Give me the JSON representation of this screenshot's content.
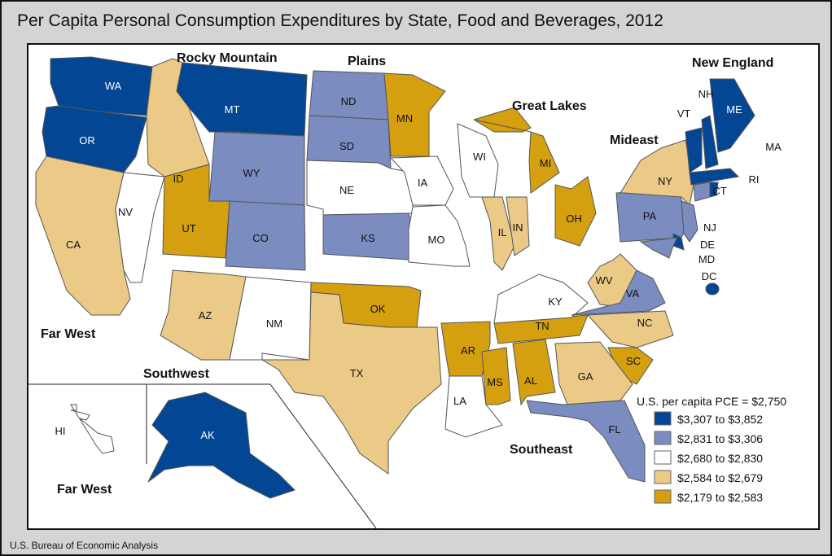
{
  "title": "Per Capita Personal Consumption Expenditures by State, Food and Beverages, 2012",
  "source": "U.S. Bureau of Economic Analysis",
  "legend": {
    "title": "U.S. per capita PCE = $2,750",
    "classes": [
      {
        "label": "$3,307 to $3,852",
        "color": "#034694"
      },
      {
        "label": "$2,831 to $3,306",
        "color": "#7a8cc0"
      },
      {
        "label": "$2,680 to $2,830",
        "color": "#ffffff"
      },
      {
        "label": "$2,584 to $2,679",
        "color": "#ebc987"
      },
      {
        "label": "$2,179 to $2,583",
        "color": "#d4a010"
      }
    ]
  },
  "regions": [
    "Rocky Mountain",
    "Plains",
    "Great Lakes",
    "New England",
    "Mideast",
    "Far West",
    "Southwest",
    "Southeast",
    "Far West"
  ],
  "states": [
    {
      "abbr": "WA",
      "cls": 0
    },
    {
      "abbr": "OR",
      "cls": 0
    },
    {
      "abbr": "CA",
      "cls": 3
    },
    {
      "abbr": "NV",
      "cls": 2
    },
    {
      "abbr": "ID",
      "cls": 3
    },
    {
      "abbr": "MT",
      "cls": 0
    },
    {
      "abbr": "WY",
      "cls": 1
    },
    {
      "abbr": "UT",
      "cls": 4
    },
    {
      "abbr": "CO",
      "cls": 1
    },
    {
      "abbr": "AZ",
      "cls": 3
    },
    {
      "abbr": "NM",
      "cls": 2
    },
    {
      "abbr": "ND",
      "cls": 1
    },
    {
      "abbr": "SD",
      "cls": 1
    },
    {
      "abbr": "NE",
      "cls": 2
    },
    {
      "abbr": "KS",
      "cls": 1
    },
    {
      "abbr": "OK",
      "cls": 4
    },
    {
      "abbr": "TX",
      "cls": 3
    },
    {
      "abbr": "MN",
      "cls": 4
    },
    {
      "abbr": "IA",
      "cls": 2
    },
    {
      "abbr": "MO",
      "cls": 2
    },
    {
      "abbr": "AR",
      "cls": 4
    },
    {
      "abbr": "LA",
      "cls": 2
    },
    {
      "abbr": "MS",
      "cls": 4
    },
    {
      "abbr": "AL",
      "cls": 4
    },
    {
      "abbr": "TN",
      "cls": 4
    },
    {
      "abbr": "KY",
      "cls": 2
    },
    {
      "abbr": "WI",
      "cls": 2
    },
    {
      "abbr": "IL",
      "cls": 3
    },
    {
      "abbr": "IN",
      "cls": 3
    },
    {
      "abbr": "MI",
      "cls": 4
    },
    {
      "abbr": "OH",
      "cls": 4
    },
    {
      "abbr": "WV",
      "cls": 3
    },
    {
      "abbr": "VA",
      "cls": 1
    },
    {
      "abbr": "NC",
      "cls": 3
    },
    {
      "abbr": "SC",
      "cls": 4
    },
    {
      "abbr": "GA",
      "cls": 3
    },
    {
      "abbr": "FL",
      "cls": 1
    },
    {
      "abbr": "PA",
      "cls": 1
    },
    {
      "abbr": "NY",
      "cls": 3
    },
    {
      "abbr": "NJ",
      "cls": 1
    },
    {
      "abbr": "DE",
      "cls": 0
    },
    {
      "abbr": "MD",
      "cls": 1
    },
    {
      "abbr": "DC",
      "cls": 0
    },
    {
      "abbr": "VT",
      "cls": 0
    },
    {
      "abbr": "NH",
      "cls": 0
    },
    {
      "abbr": "ME",
      "cls": 0
    },
    {
      "abbr": "MA",
      "cls": 0
    },
    {
      "abbr": "CT",
      "cls": 1
    },
    {
      "abbr": "RI",
      "cls": 0
    },
    {
      "abbr": "AK",
      "cls": 0
    },
    {
      "abbr": "HI",
      "cls": 2
    }
  ]
}
